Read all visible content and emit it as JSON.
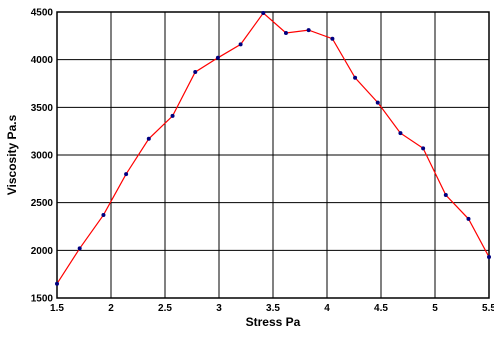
{
  "chart_data": {
    "type": "line",
    "title": "",
    "xlabel": "Stress Pa",
    "ylabel": "Viscosity Pa.s",
    "xlim": [
      1.5,
      5.5
    ],
    "ylim": [
      1500,
      4500
    ],
    "xticks": [
      1.5,
      2,
      2.5,
      3,
      3.5,
      4,
      4.5,
      5,
      5.5
    ],
    "yticks": [
      1500,
      2000,
      2500,
      3000,
      3500,
      4000,
      4500
    ],
    "xtick_labels": [
      "1.5",
      "2",
      "2.5",
      "3",
      "3.5",
      "4",
      "4.5",
      "5",
      "5.5"
    ],
    "ytick_labels": [
      "1500",
      "2000",
      "2500",
      "3000",
      "3500",
      "4000",
      "4500"
    ],
    "grid": true,
    "legend": "none",
    "line_color": "#ff0000",
    "marker_color": "#000080",
    "series": [
      {
        "x": [
          1.5,
          1.71,
          1.93,
          2.14,
          2.35,
          2.57,
          2.78,
          2.99,
          3.2,
          3.41,
          3.62,
          3.83,
          4.05,
          4.26,
          4.47,
          4.68,
          4.89,
          5.1,
          5.31,
          5.5
        ],
        "y": [
          1650,
          2020,
          2370,
          2800,
          3170,
          3410,
          3870,
          4020,
          4160,
          4490,
          4280,
          4310,
          4220,
          3810,
          3550,
          3230,
          3070,
          2580,
          2330,
          1930
        ]
      }
    ]
  }
}
